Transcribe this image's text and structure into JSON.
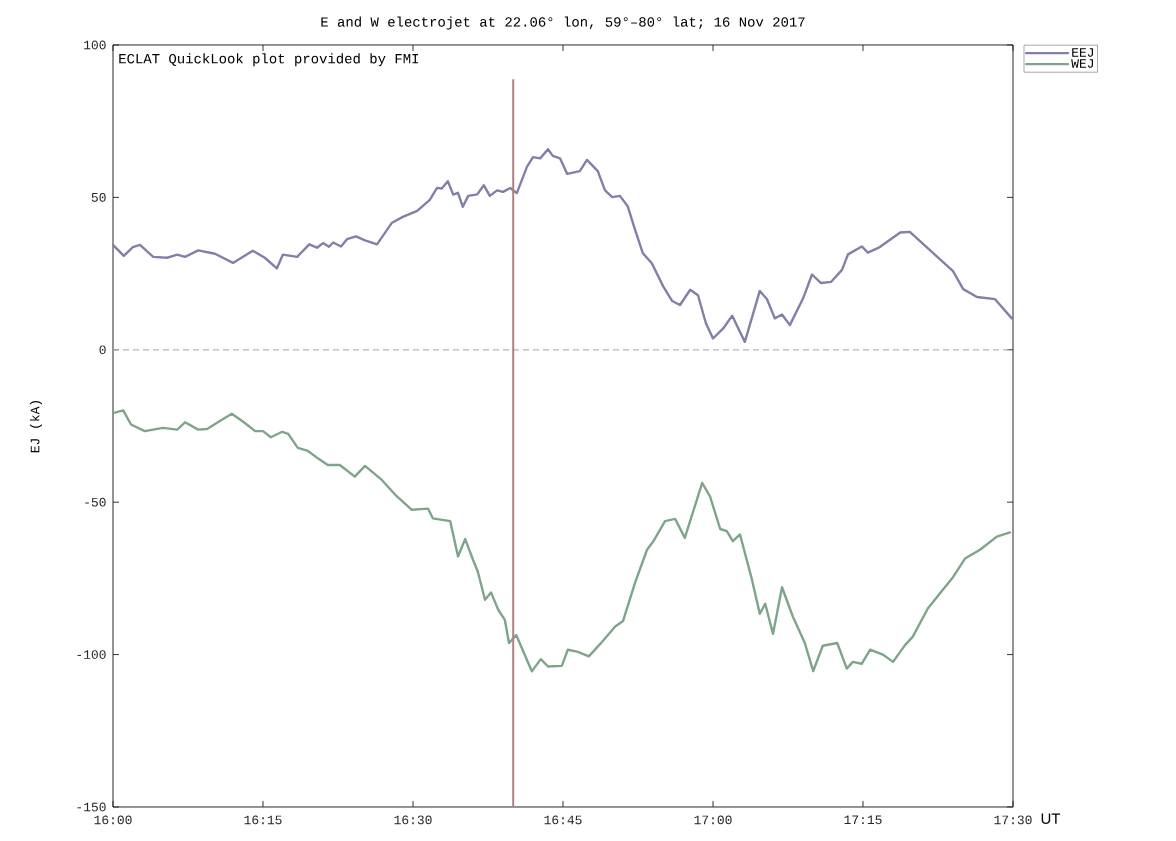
{
  "chart_data": {
    "type": "line",
    "title": "E and W electrojet at 22.06° lon, 59°–80° lat; 16 Nov 2017",
    "xlabel": "UT",
    "ylabel": "EJ (kA)",
    "annotations": [
      "ECLAT QuickLook plot provided by FMI"
    ],
    "xlim": [
      16,
      17.5
    ],
    "ylim": [
      -150,
      100
    ],
    "xticks": [
      {
        "value": 16,
        "label": "16:00"
      },
      {
        "value": 16.25,
        "label": "16:15"
      },
      {
        "value": 16.5,
        "label": "16:30"
      },
      {
        "value": 16.75,
        "label": "16:45"
      },
      {
        "value": 17,
        "label": "17:00"
      },
      {
        "value": 17.25,
        "label": "17:15"
      },
      {
        "value": 17.5,
        "label": "17:30"
      }
    ],
    "yticks": [
      -150,
      -100,
      -50,
      0,
      50,
      100
    ],
    "legend": "top right",
    "ref_lines": [
      {
        "axis": "y",
        "value": 0,
        "color": "#b4b4b4",
        "line_style": "dashed"
      },
      {
        "axis": "x",
        "value": 16.667,
        "color": "#b08080"
      }
    ],
    "series": [
      {
        "name": "EEJ",
        "color": "#8080a8",
        "x": [
          16.0,
          16.018,
          16.033,
          16.045,
          16.067,
          16.09,
          16.107,
          16.12,
          16.142,
          16.17,
          16.2,
          16.233,
          16.253,
          16.273,
          16.283,
          16.307,
          16.327,
          16.34,
          16.35,
          16.36,
          16.367,
          16.38,
          16.39,
          16.405,
          16.42,
          16.44,
          16.465,
          16.483,
          16.507,
          16.528,
          16.54,
          16.548,
          16.558,
          16.567,
          16.575,
          16.583,
          16.592,
          16.607,
          16.618,
          16.628,
          16.64,
          16.65,
          16.662,
          16.673,
          16.69,
          16.7,
          16.712,
          16.725,
          16.733,
          16.745,
          16.757,
          16.778,
          16.79,
          16.808,
          16.82,
          16.832,
          16.845,
          16.858,
          16.87,
          16.883,
          16.898,
          16.917,
          16.932,
          16.945,
          16.962,
          16.975,
          16.988,
          17.0,
          17.017,
          17.032,
          17.053,
          17.078,
          17.09,
          17.103,
          17.115,
          17.128,
          17.15,
          17.165,
          17.18,
          17.197,
          17.215,
          17.225,
          17.248,
          17.258,
          17.278,
          17.312,
          17.328,
          17.367,
          17.4,
          17.417,
          17.44,
          17.47,
          17.498
        ],
        "values": [
          34.4,
          30.8,
          33.7,
          34.4,
          30.5,
          30.2,
          31.2,
          30.5,
          32.6,
          31.5,
          28.5,
          32.5,
          30.2,
          26.7,
          31.2,
          30.5,
          34.6,
          33.5,
          35,
          33.8,
          35.2,
          33.9,
          36.3,
          37.2,
          35.9,
          34.6,
          41.7,
          43.6,
          45.6,
          49.2,
          53.1,
          52.9,
          55.3,
          50.9,
          51.5,
          46.9,
          50.5,
          51,
          54,
          50.5,
          52.3,
          51.8,
          53.1,
          51.4,
          60.1,
          63.2,
          62.8,
          65.8,
          63.6,
          62.8,
          57.7,
          58.6,
          62.3,
          58.6,
          52.3,
          50.1,
          50.5,
          47,
          39.4,
          31.7,
          28.4,
          20.8,
          16,
          14.7,
          19.7,
          17.9,
          8.8,
          3.7,
          7,
          11.2,
          2.6,
          19.3,
          16.6,
          10.3,
          11.6,
          8.1,
          16.8,
          24.7,
          21.9,
          22.3,
          26.2,
          31.3,
          33.9,
          31.9,
          33.7,
          38.5,
          38.7,
          31.7,
          25.8,
          19.9,
          17.3,
          16.6,
          10.3
        ]
      },
      {
        "name": "WEJ",
        "color": "#7ea58a",
        "x": [
          16.0,
          16.017,
          16.03,
          16.053,
          16.083,
          16.107,
          16.12,
          16.142,
          16.157,
          16.178,
          16.198,
          16.217,
          16.237,
          16.25,
          16.263,
          16.282,
          16.292,
          16.308,
          16.325,
          16.342,
          16.358,
          16.378,
          16.403,
          16.42,
          16.448,
          16.47,
          16.498,
          16.525,
          16.533,
          16.562,
          16.575,
          16.587,
          16.6,
          16.608,
          16.62,
          16.63,
          16.642,
          16.653,
          16.66,
          16.672,
          16.698,
          16.713,
          16.725,
          16.748,
          16.758,
          16.775,
          16.793,
          16.812,
          16.837,
          16.85,
          16.87,
          16.89,
          16.9,
          16.92,
          16.937,
          16.953,
          16.982,
          16.995,
          17.012,
          17.023,
          17.033,
          17.045,
          17.065,
          17.078,
          17.087,
          17.1,
          17.115,
          17.133,
          17.153,
          17.167,
          17.183,
          17.207,
          17.223,
          17.233,
          17.248,
          17.262,
          17.283,
          17.3,
          17.32,
          17.333,
          17.358,
          17.383,
          17.4,
          17.42,
          17.445,
          17.473,
          17.495
        ],
        "values": [
          -20.8,
          -19.9,
          -24.5,
          -26.7,
          -25.6,
          -26.2,
          -23.8,
          -26.2,
          -26,
          -23.4,
          -21,
          -23.6,
          -26.7,
          -26.7,
          -28.7,
          -26.9,
          -27.6,
          -32.2,
          -33.2,
          -35.7,
          -37.8,
          -37.8,
          -41.6,
          -38.1,
          -42.7,
          -47.5,
          -52.5,
          -52.1,
          -55.3,
          -56.2,
          -67.8,
          -62.1,
          -68.9,
          -72.8,
          -82,
          -79.6,
          -85.3,
          -88.6,
          -96.2,
          -93.6,
          -105.5,
          -101.5,
          -103.9,
          -103.7,
          -98.4,
          -99.1,
          -100.6,
          -96.5,
          -90.8,
          -89,
          -76.5,
          -65.6,
          -63,
          -56.2,
          -55.5,
          -61.7,
          -43.7,
          -48.1,
          -58.8,
          -59.5,
          -62.8,
          -60.6,
          -75.5,
          -86.6,
          -83.3,
          -93.2,
          -77.9,
          -87.5,
          -96.2,
          -105.4,
          -97.1,
          -96.2,
          -104.6,
          -102.4,
          -103,
          -98.4,
          -100,
          -102.4,
          -96.9,
          -94.1,
          -84.9,
          -78.7,
          -74.6,
          -68.5,
          -65.6,
          -61.3,
          -59.9
        ]
      }
    ]
  }
}
